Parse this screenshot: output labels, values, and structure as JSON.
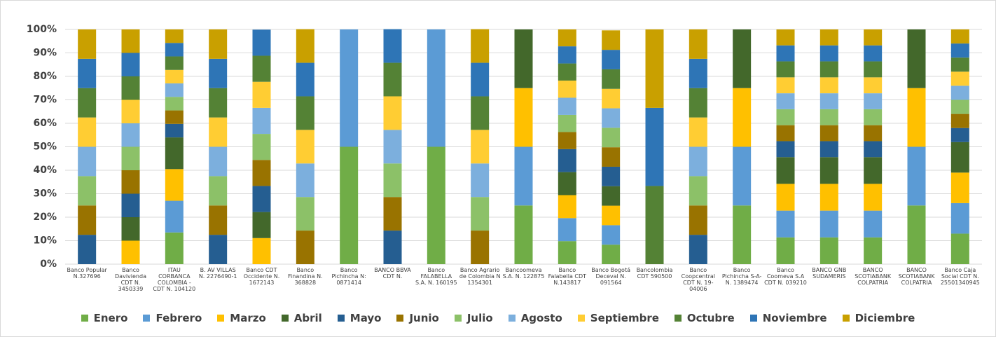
{
  "chart_data": {
    "type": "stacked_bar",
    "categories": [
      "Banco Popular\nN.327696",
      "Banco\nDavivienda\nCDT N.\n3450339",
      "ITAU\nCORBANCA\nCOLOMBIA -\nCDT N. 104120",
      "B. AV VILLAS\nN. 2276490-1",
      "Banco  CDT\nOccidente N.\n1672143",
      "Banco\nFinandina  N.\n368828",
      "Banco\nPichincha N:\n0871414",
      "BANCO BBVA\nCDT N.",
      "Banco\nFALABELLA\nS.A. N. 160195",
      "Banco Agrario\nde Colombia N\n1354301",
      "Bancoomeva\nS.A. N. 122875",
      "Banco\nFalabella  CDT\nN.143817",
      "Banco Bogotá\nDeceval N.\n091564",
      "Bancolombia\nCDT 590500",
      "Banco\nCoopcentral\nCDT N. 19-\n04006",
      "Banco\nPichincha S-A-\nN. 1389474",
      "Banco\nCoomeva S.A\nCDT N. 039210",
      "BANCO GNB\nSUDAMERIS",
      "BANCO\nSCOTIABANK\nCOLPATRIA",
      "BANCO\nSCOTIABANK\nCOLPATRIA",
      "Banco Caja\nSocial CDT N.\n25501340945"
    ],
    "series": [
      {
        "name": "Enero",
        "color": "#70ad47",
        "values": [
          0,
          0,
          13.5,
          0,
          0,
          0,
          50,
          0,
          50,
          0,
          25,
          9.8,
          8.3,
          0,
          0,
          25,
          11.4,
          11.4,
          11.4,
          25,
          13
        ]
      },
      {
        "name": "Febrero",
        "color": "#5b9bd5",
        "values": [
          0,
          0,
          13.5,
          0,
          0,
          0,
          50,
          0,
          50,
          0,
          25,
          9.8,
          8.3,
          0,
          0,
          25,
          11.4,
          11.4,
          11.4,
          25,
          13
        ]
      },
      {
        "name": "Marzo",
        "color": "#ffc000",
        "values": [
          0,
          10,
          13.5,
          0,
          11.1,
          0,
          0,
          0,
          0,
          0,
          25,
          9.8,
          8.3,
          0,
          0,
          25,
          11.4,
          11.4,
          11.4,
          25,
          13
        ]
      },
      {
        "name": "Abril",
        "color": "#43682b",
        "values": [
          0,
          10,
          13.5,
          0,
          11.1,
          0,
          0,
          0,
          0,
          0,
          25,
          9.8,
          8.3,
          0,
          0,
          25,
          11.4,
          11.4,
          11.4,
          25,
          13
        ]
      },
      {
        "name": "Mayo",
        "color": "#255e91",
        "values": [
          12.5,
          10,
          5.75,
          12.5,
          11.1,
          0,
          0,
          14.3,
          0,
          0,
          0,
          9.8,
          8.3,
          0,
          12.5,
          0,
          6.8,
          6.8,
          6.8,
          0,
          6
        ]
      },
      {
        "name": "Junio",
        "color": "#997300",
        "values": [
          12.5,
          10,
          5.75,
          12.5,
          11.1,
          14.3,
          0,
          14.3,
          0,
          14.3,
          0,
          7.3,
          8.3,
          0,
          12.5,
          0,
          6.8,
          6.8,
          6.8,
          0,
          6
        ]
      },
      {
        "name": "Julio",
        "color": "#8cc168",
        "values": [
          12.5,
          10,
          5.75,
          12.5,
          11.1,
          14.3,
          0,
          14.3,
          0,
          14.3,
          0,
          7.3,
          8.3,
          0,
          12.5,
          0,
          6.8,
          6.8,
          6.8,
          0,
          6
        ]
      },
      {
        "name": "Agosto",
        "color": "#7cafdd",
        "values": [
          12.5,
          10,
          5.75,
          12.5,
          11.1,
          14.3,
          0,
          14.3,
          0,
          14.3,
          0,
          7.3,
          8.3,
          0,
          12.5,
          0,
          6.8,
          6.8,
          6.8,
          0,
          6
        ]
      },
      {
        "name": "Septiembre",
        "color": "#ffcd33",
        "values": [
          12.5,
          10,
          5.75,
          12.5,
          11.1,
          14.3,
          0,
          14.3,
          0,
          14.3,
          0,
          7.3,
          8.3,
          0,
          12.5,
          0,
          6.8,
          6.8,
          6.8,
          0,
          6
        ]
      },
      {
        "name": "Octubre",
        "color": "#548235",
        "values": [
          12.5,
          10,
          5.75,
          12.5,
          11.1,
          14.3,
          0,
          14.3,
          0,
          14.3,
          0,
          7.3,
          8.3,
          33.3,
          12.5,
          0,
          6.8,
          6.8,
          6.8,
          0,
          6
        ]
      },
      {
        "name": "Noviembre",
        "color": "#2e75b6",
        "values": [
          12.5,
          10,
          5.75,
          12.5,
          11.1,
          14.3,
          0,
          14.3,
          0,
          14.3,
          0,
          7.3,
          8.3,
          33.3,
          12.5,
          0,
          6.8,
          6.8,
          6.8,
          0,
          6
        ]
      },
      {
        "name": "Diciembre",
        "color": "#c9a000",
        "values": [
          12.5,
          10,
          5.75,
          12.5,
          0,
          14.3,
          0,
          0,
          0,
          14.3,
          0,
          7.2,
          8.3,
          33.4,
          12.5,
          0,
          6.8,
          6.8,
          6.8,
          0,
          6
        ]
      }
    ],
    "ylim": [
      0,
      100
    ],
    "yticks": [
      {
        "value": 0,
        "label": "0%"
      },
      {
        "value": 10,
        "label": "10%"
      },
      {
        "value": 20,
        "label": "20%"
      },
      {
        "value": 30,
        "label": "30%"
      },
      {
        "value": 40,
        "label": "40%"
      },
      {
        "value": 50,
        "label": "50%"
      },
      {
        "value": 60,
        "label": "60%"
      },
      {
        "value": 70,
        "label": "70%"
      },
      {
        "value": 80,
        "label": "80%"
      },
      {
        "value": 90,
        "label": "90%"
      },
      {
        "value": 100,
        "label": "100%"
      }
    ],
    "grid": true,
    "legend": "bottom"
  }
}
